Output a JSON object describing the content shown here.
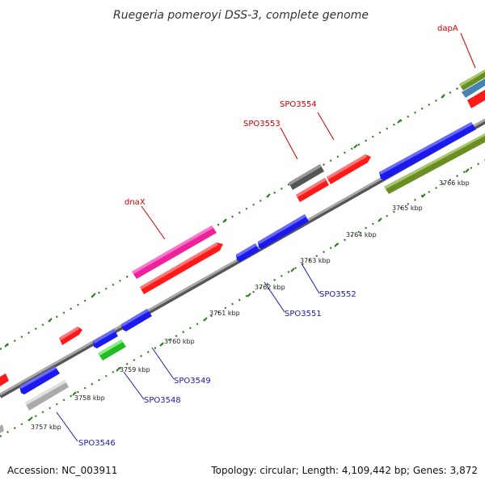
{
  "title": "Ruegeria pomeroyi DSS-3, complete genome",
  "footer": {
    "accession": "Accession: NC_003911",
    "summary": "Topology: circular; Length: 4,109,442 bp; Genes: 3,872"
  },
  "colors": {
    "backbone": "#8a8a8a",
    "forward_red": "#ff1a1a",
    "reverse_blue": "#1a1aee",
    "pink": "#ee2299",
    "gray": "#666666",
    "light_gray": "#bbbbbb",
    "olive": "#6b8e23",
    "steelblue": "#4682b4",
    "green": "#33cc33",
    "tick_green": "#2e7d1e"
  },
  "ticks": [
    "3757 kbp",
    "3758 kbp",
    "3759 kbp",
    "3760 kbp",
    "3761 kbp",
    "3762 kbp",
    "3763 kbp",
    "3764 kbp",
    "3765 kbp",
    "3766 kbp"
  ],
  "labels": {
    "top": [
      "dapA",
      "SPO3554",
      "SPO3553",
      "dnaX"
    ],
    "bottom": [
      "SPO3546",
      "SPO3548",
      "SPO3549",
      "SPO3551",
      "SPO3552"
    ]
  }
}
